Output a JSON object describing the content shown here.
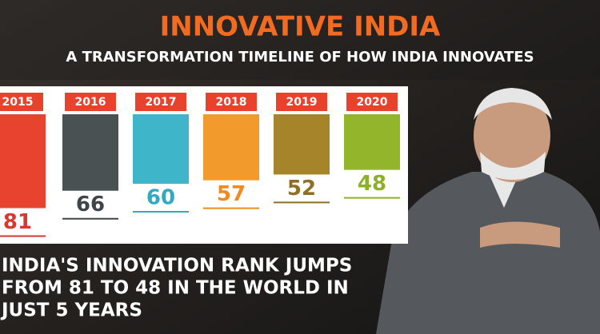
{
  "chart_data": {
    "type": "bar",
    "title": "INNOVATIVE INDIA",
    "subtitle": "A TRANSFORMATION TIMELINE OF HOW INDIA INNOVATES",
    "categories": [
      "2015",
      "2016",
      "2017",
      "2018",
      "2019",
      "2020"
    ],
    "values": [
      81,
      66,
      60,
      57,
      52,
      48
    ],
    "colors": [
      "#e8432e",
      "#4a5153",
      "#3fb5c9",
      "#f39a2c",
      "#a6842a",
      "#93b52b"
    ],
    "label_colors": [
      "#d9392c",
      "#3d4548",
      "#2eaac3",
      "#f08a1f",
      "#8e6f24",
      "#8db02c"
    ],
    "annotation": [
      "INDIA'S INNOVATION RANK JUMPS",
      "FROM 81 TO 48 IN THE WORLD IN",
      "JUST 5 YEARS"
    ]
  }
}
